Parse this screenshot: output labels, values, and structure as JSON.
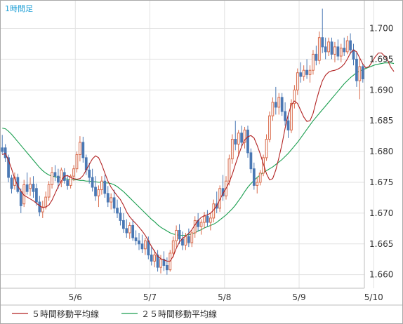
{
  "chart_data": {
    "type": "candlestick",
    "title": "1時間足",
    "ylim": [
      1.6578,
      1.7045
    ],
    "yticks": [
      "1.660",
      "1.665",
      "1.670",
      "1.675",
      "1.680",
      "1.685",
      "1.690",
      "1.695",
      "1.700"
    ],
    "xticks": [
      "5/6",
      "5/7",
      "5/8",
      "5/9",
      "5/10"
    ],
    "xtick_index": [
      24,
      48,
      72,
      96,
      120
    ],
    "grid": true,
    "legend_position": "bottom",
    "colors": {
      "up": "#d96a4a",
      "down": "#4a78b4",
      "ma5": "#b22222",
      "ma25": "#1a9e4f"
    },
    "series": [
      {
        "name": "５時間移動平均線",
        "color": "#b22222",
        "values": [
          1.6795,
          1.6797,
          1.6786,
          1.6772,
          1.6756,
          1.6744,
          1.6736,
          1.6729,
          1.6726,
          1.6723,
          1.672,
          1.6716,
          1.6712,
          1.6709,
          1.671,
          1.6713,
          1.6721,
          1.6732,
          1.6743,
          1.6752,
          1.676,
          1.6761,
          1.6758,
          1.6756,
          1.6755,
          1.6756,
          1.6761,
          1.677,
          1.6779,
          1.6788,
          1.6793,
          1.679,
          1.6779,
          1.6765,
          1.6752,
          1.6742,
          1.6735,
          1.6728,
          1.6722,
          1.6713,
          1.6702,
          1.6694,
          1.6688,
          1.6683,
          1.6677,
          1.6671,
          1.6664,
          1.6655,
          1.6646,
          1.6638,
          1.663,
          1.6626,
          1.6624,
          1.6622,
          1.6622,
          1.663,
          1.6643,
          1.6653,
          1.6659,
          1.6663,
          1.6667,
          1.6673,
          1.6681,
          1.6688,
          1.6693,
          1.6696,
          1.6697,
          1.67,
          1.6705,
          1.6712,
          1.6722,
          1.6732,
          1.674,
          1.675,
          1.6763,
          1.6779,
          1.6794,
          1.6808,
          1.6819,
          1.6824,
          1.6826,
          1.6822,
          1.681,
          1.6796,
          1.678,
          1.6764,
          1.6754,
          1.6756,
          1.677,
          1.679,
          1.6812,
          1.6838,
          1.686,
          1.6876,
          1.6882,
          1.6878,
          1.6867,
          1.6856,
          1.6849,
          1.685,
          1.6862,
          1.6882,
          1.69,
          1.6915,
          1.6924,
          1.6929,
          1.6931,
          1.6932,
          1.6934,
          1.6937,
          1.6942,
          1.695,
          1.696,
          1.6965,
          1.6962,
          1.6952,
          1.6942,
          1.6936,
          1.6938,
          1.6946,
          1.6954,
          1.696,
          1.696,
          1.6955,
          1.6948,
          1.6937,
          1.693
        ]
      },
      {
        "name": "２５時間移動平均線",
        "color": "#1a9e4f",
        "values": [
          1.6838,
          1.6837,
          1.6833,
          1.6828,
          1.6822,
          1.6816,
          1.681,
          1.6804,
          1.6798,
          1.6792,
          1.6786,
          1.678,
          1.6774,
          1.6769,
          1.6765,
          1.6762,
          1.676,
          1.6759,
          1.6758,
          1.6757,
          1.6756,
          1.6755,
          1.6755,
          1.6754,
          1.6754,
          1.6753,
          1.6753,
          1.6752,
          1.6752,
          1.6751,
          1.6751,
          1.675,
          1.675,
          1.6749,
          1.6749,
          1.6748,
          1.6746,
          1.6743,
          1.6739,
          1.6735,
          1.673,
          1.6725,
          1.672,
          1.6715,
          1.671,
          1.6705,
          1.67,
          1.6695,
          1.669,
          1.6686,
          1.6681,
          1.6677,
          1.6674,
          1.6671,
          1.6668,
          1.6666,
          1.6665,
          1.6664,
          1.6664,
          1.6664,
          1.6665,
          1.6666,
          1.6668,
          1.6671,
          1.6673,
          1.6676,
          1.6678,
          1.668,
          1.6682,
          1.6685,
          1.6689,
          1.6693,
          1.6697,
          1.6702,
          1.6707,
          1.6713,
          1.672,
          1.6727,
          1.6735,
          1.6742,
          1.6748,
          1.6753,
          1.6758,
          1.6762,
          1.6766,
          1.6769,
          1.6772,
          1.6775,
          1.6779,
          1.6783,
          1.6787,
          1.6792,
          1.6797,
          1.6803,
          1.6809,
          1.6815,
          1.6822,
          1.6829,
          1.6836,
          1.6843,
          1.685,
          1.6856,
          1.6862,
          1.6868,
          1.6874,
          1.688,
          1.6886,
          1.6892,
          1.6898,
          1.6904,
          1.691,
          1.6915,
          1.692,
          1.6924,
          1.6928,
          1.6931,
          1.6933,
          1.6935,
          1.6937,
          1.6939,
          1.6941,
          1.6942,
          1.6943,
          1.6944,
          1.6944,
          1.6944,
          1.6943
        ]
      }
    ],
    "candles": [
      [
        1.6806,
        1.6827,
        1.6796,
        1.68
      ],
      [
        1.6806,
        1.6812,
        1.6783,
        1.679
      ],
      [
        1.679,
        1.6795,
        1.675,
        1.6758
      ],
      [
        1.6757,
        1.6762,
        1.6732,
        1.674
      ],
      [
        1.6745,
        1.6766,
        1.6738,
        1.6758
      ],
      [
        1.6758,
        1.6764,
        1.6732,
        1.6735
      ],
      [
        1.6735,
        1.674,
        1.67,
        1.6712
      ],
      [
        1.6715,
        1.6754,
        1.671,
        1.6746
      ],
      [
        1.6746,
        1.6766,
        1.673,
        1.6735
      ],
      [
        1.674,
        1.6758,
        1.6728,
        1.6747
      ],
      [
        1.6747,
        1.676,
        1.6725,
        1.6735
      ],
      [
        1.674,
        1.6748,
        1.6712,
        1.6718
      ],
      [
        1.6718,
        1.6728,
        1.6695,
        1.6702
      ],
      [
        1.6702,
        1.672,
        1.6692,
        1.671
      ],
      [
        1.671,
        1.6735,
        1.6706,
        1.6726
      ],
      [
        1.6726,
        1.6752,
        1.672,
        1.6746
      ],
      [
        1.6746,
        1.6775,
        1.674,
        1.6766
      ],
      [
        1.6766,
        1.6778,
        1.6752,
        1.676
      ],
      [
        1.676,
        1.6772,
        1.674,
        1.675
      ],
      [
        1.675,
        1.6774,
        1.6742,
        1.677
      ],
      [
        1.6766,
        1.6773,
        1.6748,
        1.6753
      ],
      [
        1.6753,
        1.6762,
        1.6738,
        1.6745
      ],
      [
        1.6745,
        1.6763,
        1.674,
        1.676
      ],
      [
        1.676,
        1.6778,
        1.6752,
        1.6772
      ],
      [
        1.6772,
        1.68,
        1.6766,
        1.6795
      ],
      [
        1.6795,
        1.6825,
        1.6784,
        1.6815
      ],
      [
        1.6815,
        1.6824,
        1.6782,
        1.679
      ],
      [
        1.679,
        1.6795,
        1.6762,
        1.677
      ],
      [
        1.677,
        1.6782,
        1.6748,
        1.6758
      ],
      [
        1.6758,
        1.6772,
        1.6735,
        1.6742
      ],
      [
        1.6742,
        1.676,
        1.672,
        1.6728
      ],
      [
        1.6728,
        1.6745,
        1.671,
        1.6738
      ],
      [
        1.6738,
        1.676,
        1.673,
        1.6752
      ],
      [
        1.6752,
        1.6762,
        1.6725,
        1.6732
      ],
      [
        1.6732,
        1.6744,
        1.671,
        1.6718
      ],
      [
        1.6718,
        1.6732,
        1.6706,
        1.6725
      ],
      [
        1.6725,
        1.6738,
        1.67,
        1.6708
      ],
      [
        1.6708,
        1.6722,
        1.6692,
        1.67
      ],
      [
        1.67,
        1.671,
        1.668,
        1.6688
      ],
      [
        1.6688,
        1.67,
        1.6668,
        1.6675
      ],
      [
        1.6675,
        1.669,
        1.666,
        1.6668
      ],
      [
        1.6668,
        1.6685,
        1.6658,
        1.668
      ],
      [
        1.668,
        1.669,
        1.6655,
        1.666
      ],
      [
        1.666,
        1.6672,
        1.6648,
        1.6655
      ],
      [
        1.6655,
        1.6668,
        1.664,
        1.665
      ],
      [
        1.665,
        1.6665,
        1.6635,
        1.6642
      ],
      [
        1.6642,
        1.666,
        1.6632,
        1.6655
      ],
      [
        1.6655,
        1.6662,
        1.6625,
        1.6632
      ],
      [
        1.6632,
        1.6645,
        1.6615,
        1.6622
      ],
      [
        1.6622,
        1.664,
        1.6612,
        1.6632
      ],
      [
        1.6632,
        1.664,
        1.6605,
        1.6612
      ],
      [
        1.6612,
        1.6632,
        1.6602,
        1.6625
      ],
      [
        1.6625,
        1.6638,
        1.6606,
        1.6615
      ],
      [
        1.6615,
        1.6628,
        1.66,
        1.6608
      ],
      [
        1.6608,
        1.664,
        1.6605,
        1.6635
      ],
      [
        1.6635,
        1.6662,
        1.6628,
        1.6655
      ],
      [
        1.6655,
        1.668,
        1.6645,
        1.6672
      ],
      [
        1.6672,
        1.6682,
        1.665,
        1.6658
      ],
      [
        1.6658,
        1.667,
        1.664,
        1.6648
      ],
      [
        1.6648,
        1.6668,
        1.664,
        1.6662
      ],
      [
        1.6662,
        1.6675,
        1.6645,
        1.6652
      ],
      [
        1.6652,
        1.6672,
        1.6645,
        1.6668
      ],
      [
        1.6668,
        1.6695,
        1.666,
        1.6688
      ],
      [
        1.6688,
        1.67,
        1.667,
        1.6678
      ],
      [
        1.6678,
        1.669,
        1.6665,
        1.6685
      ],
      [
        1.6685,
        1.6702,
        1.6675,
        1.6695
      ],
      [
        1.6695,
        1.6705,
        1.6678,
        1.6685
      ],
      [
        1.6685,
        1.67,
        1.6672,
        1.6692
      ],
      [
        1.6692,
        1.6722,
        1.6685,
        1.6715
      ],
      [
        1.6715,
        1.6735,
        1.67,
        1.6708
      ],
      [
        1.6708,
        1.6745,
        1.6702,
        1.674
      ],
      [
        1.674,
        1.6762,
        1.672,
        1.6728
      ],
      [
        1.6728,
        1.676,
        1.6722,
        1.6752
      ],
      [
        1.6752,
        1.6795,
        1.6745,
        1.6788
      ],
      [
        1.6788,
        1.6828,
        1.678,
        1.682
      ],
      [
        1.682,
        1.685,
        1.6802,
        1.6812
      ],
      [
        1.6812,
        1.6835,
        1.6795,
        1.683
      ],
      [
        1.683,
        1.6842,
        1.6808,
        1.6815
      ],
      [
        1.6815,
        1.684,
        1.6805,
        1.6835
      ],
      [
        1.6835,
        1.6842,
        1.679,
        1.6798
      ],
      [
        1.6798,
        1.6805,
        1.6765,
        1.6772
      ],
      [
        1.6772,
        1.6782,
        1.6738,
        1.6745
      ],
      [
        1.6745,
        1.6758,
        1.6732,
        1.675
      ],
      [
        1.675,
        1.677,
        1.6745,
        1.6765
      ],
      [
        1.6765,
        1.6795,
        1.676,
        1.679
      ],
      [
        1.679,
        1.6828,
        1.6785,
        1.682
      ],
      [
        1.682,
        1.6865,
        1.6815,
        1.6858
      ],
      [
        1.6858,
        1.6888,
        1.685,
        1.688
      ],
      [
        1.688,
        1.6905,
        1.686,
        1.6872
      ],
      [
        1.6872,
        1.6895,
        1.686,
        1.6888
      ],
      [
        1.6888,
        1.6895,
        1.6858,
        1.6865
      ],
      [
        1.6865,
        1.688,
        1.6842,
        1.685
      ],
      [
        1.685,
        1.6862,
        1.6822,
        1.6835
      ],
      [
        1.6835,
        1.6885,
        1.683,
        1.6878
      ],
      [
        1.6878,
        1.6908,
        1.687,
        1.69
      ],
      [
        1.69,
        1.6935,
        1.6892,
        1.6928
      ],
      [
        1.6928,
        1.6945,
        1.6912,
        1.6922
      ],
      [
        1.6922,
        1.694,
        1.6915,
        1.6932
      ],
      [
        1.6932,
        1.695,
        1.6918,
        1.6925
      ],
      [
        1.6925,
        1.694,
        1.6912,
        1.6932
      ],
      [
        1.6932,
        1.6965,
        1.6925,
        1.6958
      ],
      [
        1.6958,
        1.6972,
        1.694,
        1.6948
      ],
      [
        1.6948,
        1.6995,
        1.6942,
        1.6985
      ],
      [
        1.6985,
        1.7032,
        1.696,
        1.697
      ],
      [
        1.697,
        1.6985,
        1.695,
        1.6962
      ],
      [
        1.6962,
        1.6985,
        1.6955,
        1.6978
      ],
      [
        1.6978,
        1.6985,
        1.695,
        1.6958
      ],
      [
        1.6958,
        1.6978,
        1.6945,
        1.697
      ],
      [
        1.697,
        1.6982,
        1.6948,
        1.6955
      ],
      [
        1.6955,
        1.6975,
        1.6945,
        1.6968
      ],
      [
        1.6968,
        1.6985,
        1.6955,
        1.6962
      ],
      [
        1.6962,
        1.6988,
        1.6958,
        1.698
      ],
      [
        1.698,
        1.6992,
        1.6958,
        1.6965
      ],
      [
        1.6965,
        1.6975,
        1.694,
        1.695
      ],
      [
        1.695,
        1.6962,
        1.6905,
        1.6915
      ],
      [
        1.6915,
        1.6952,
        1.6885,
        1.6938
      ],
      [
        1.6938,
        1.6942,
        1.6912,
        1.6918
      ]
    ]
  },
  "legend": [
    {
      "label": "５時間移動平均線",
      "color": "#b22222"
    },
    {
      "label": "２５時間移動平均線",
      "color": "#1a9e4f"
    }
  ]
}
